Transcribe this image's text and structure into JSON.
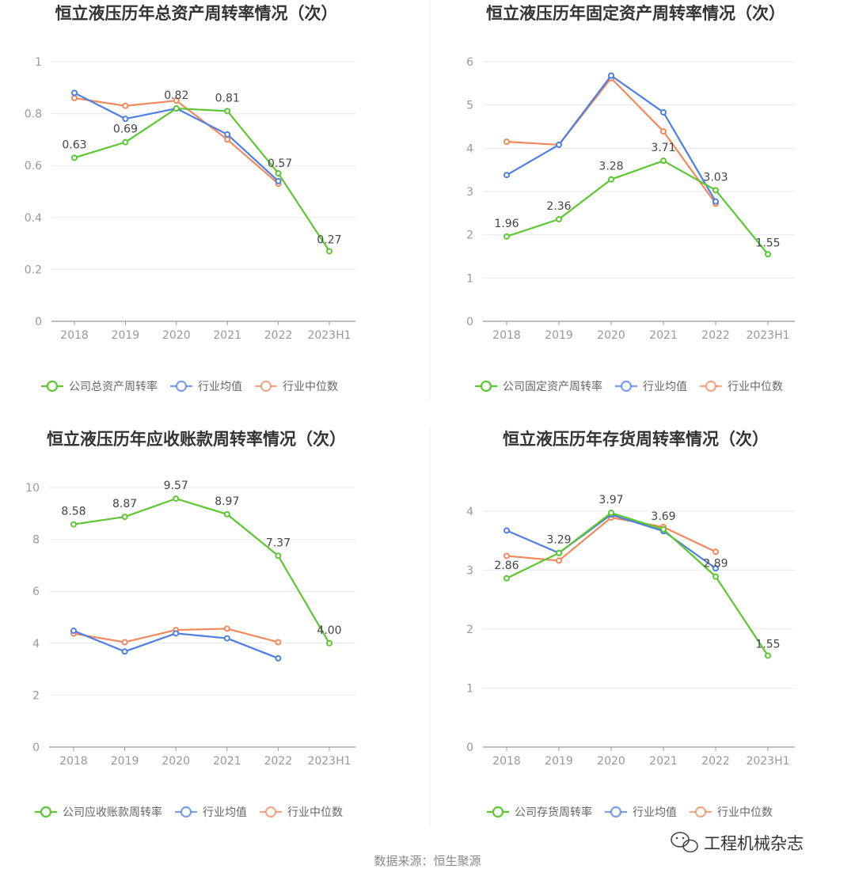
{
  "footer": {
    "source": "数据来源：恒生聚源",
    "brand": "工程机械杂志"
  },
  "colors": {
    "company": "#5cc733",
    "avg": "#4f7fe3",
    "median": "#f08a5d",
    "grid": "#e6e9f2",
    "axis": "#999999"
  },
  "chart_data": [
    {
      "type": "line",
      "title": "恒立液压历年总资产周转率情况（次）",
      "categories": [
        "2018",
        "2019",
        "2020",
        "2021",
        "2022",
        "2023H1"
      ],
      "ylim": [
        0,
        1
      ],
      "yticks": [
        "0",
        "0.2",
        "0.4",
        "0.6",
        "0.8",
        "1"
      ],
      "ytick_values": [
        0,
        0.2,
        0.4,
        0.6,
        0.8,
        1
      ],
      "legend_position": "bottom",
      "series": [
        {
          "name": "公司总资产周转率",
          "key": "company",
          "values": [
            0.63,
            0.69,
            0.82,
            0.81,
            0.57,
            0.27
          ],
          "labels": [
            "0.63",
            "0.69",
            "0.82",
            "0.81",
            "0.57",
            "0.27"
          ]
        },
        {
          "name": "行业均值",
          "key": "avg",
          "values": [
            0.88,
            0.78,
            0.82,
            0.72,
            0.54,
            null
          ]
        },
        {
          "name": "行业中位数",
          "key": "median",
          "values": [
            0.86,
            0.83,
            0.85,
            0.7,
            0.53,
            null
          ]
        }
      ]
    },
    {
      "type": "line",
      "title": "恒立液压历年固定资产周转率情况（次）",
      "categories": [
        "2018",
        "2019",
        "2020",
        "2021",
        "2022",
        "2023H1"
      ],
      "ylim": [
        0,
        6
      ],
      "yticks": [
        "0",
        "1",
        "2",
        "3",
        "4",
        "5",
        "6"
      ],
      "ytick_values": [
        0,
        1,
        2,
        3,
        4,
        5,
        6
      ],
      "legend_position": "bottom",
      "series": [
        {
          "name": "公司固定资产周转率",
          "key": "company",
          "values": [
            1.96,
            2.36,
            3.28,
            3.71,
            3.03,
            1.55
          ],
          "labels": [
            "1.96",
            "2.36",
            "3.28",
            "3.71",
            "3.03",
            "1.55"
          ]
        },
        {
          "name": "行业均值",
          "key": "avg",
          "values": [
            3.38,
            4.08,
            5.68,
            4.83,
            2.77,
            null
          ]
        },
        {
          "name": "行业中位数",
          "key": "median",
          "values": [
            4.15,
            4.08,
            5.62,
            4.39,
            2.72,
            null
          ]
        }
      ]
    },
    {
      "type": "line",
      "title": "恒立液压历年应收账款周转率情况（次）",
      "categories": [
        "2018",
        "2019",
        "2020",
        "2021",
        "2022",
        "2023H1"
      ],
      "ylim": [
        0,
        10
      ],
      "yticks": [
        "0",
        "2",
        "4",
        "6",
        "8",
        "10"
      ],
      "ytick_values": [
        0,
        2,
        4,
        6,
        8,
        10
      ],
      "legend_position": "bottom",
      "series": [
        {
          "name": "公司应收账款周转率",
          "key": "company",
          "values": [
            8.58,
            8.87,
            9.57,
            8.97,
            7.37,
            4.0
          ],
          "labels": [
            "8.58",
            "8.87",
            "9.57",
            "8.97",
            "7.37",
            "4.00"
          ]
        },
        {
          "name": "行业均值",
          "key": "avg",
          "values": [
            4.48,
            3.68,
            4.38,
            4.19,
            3.42,
            null
          ]
        },
        {
          "name": "行业中位数",
          "key": "median",
          "values": [
            4.37,
            4.04,
            4.51,
            4.56,
            4.04,
            null
          ]
        }
      ]
    },
    {
      "type": "line",
      "title": "恒立液压历年存货周转率情况（次）",
      "categories": [
        "2018",
        "2019",
        "2020",
        "2021",
        "2022",
        "2023H1"
      ],
      "ylim": [
        0,
        4.4
      ],
      "yticks": [
        "0",
        "1",
        "2",
        "3",
        "4"
      ],
      "ytick_values": [
        0,
        1,
        2,
        3,
        4
      ],
      "legend_position": "bottom",
      "series": [
        {
          "name": "公司存货周转率",
          "key": "company",
          "values": [
            2.86,
            3.29,
            3.97,
            3.69,
            2.89,
            1.55
          ],
          "labels": [
            "2.86",
            "3.29",
            "3.97",
            "3.69",
            "2.89",
            "1.55"
          ]
        },
        {
          "name": "行业均值",
          "key": "avg",
          "values": [
            3.67,
            3.29,
            3.94,
            3.66,
            3.03,
            null
          ]
        },
        {
          "name": "行业中位数",
          "key": "median",
          "values": [
            3.24,
            3.16,
            3.89,
            3.73,
            3.31,
            null
          ]
        }
      ]
    }
  ]
}
